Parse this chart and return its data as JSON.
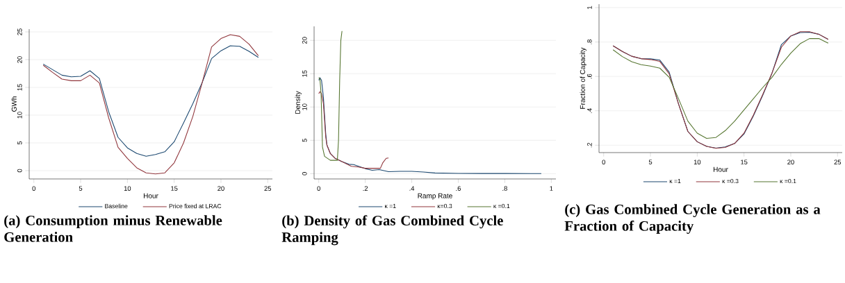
{
  "chart_data": [
    {
      "type": "line",
      "title": "(a) Consumption minus Renewable Generation",
      "xlabel": "Hour",
      "ylabel": "GWh",
      "grid": "y",
      "legend": "bottom",
      "x": [
        1,
        2,
        3,
        4,
        5,
        6,
        7,
        8,
        9,
        10,
        11,
        12,
        13,
        14,
        15,
        16,
        17,
        18,
        19,
        20,
        21,
        22,
        23,
        24
      ],
      "xlim": [
        -0.5,
        25.5
      ],
      "ylim": [
        -1.5,
        25.5
      ],
      "xticks": [
        0,
        5,
        10,
        15,
        20,
        25
      ],
      "yticks": [
        0,
        5,
        10,
        15,
        20,
        25
      ],
      "series": [
        {
          "name": "Baseline",
          "color": "#1a476f",
          "values": [
            19.2,
            18.2,
            17.2,
            16.9,
            17.0,
            18.0,
            16.6,
            10.6,
            6.0,
            4.1,
            3.1,
            2.6,
            2.9,
            3.4,
            5.2,
            8.6,
            12.1,
            15.9,
            20.2,
            21.6,
            22.5,
            22.4,
            21.5,
            20.4
          ]
        },
        {
          "name": "Price fixed at LRAC",
          "color": "#90353b",
          "values": [
            19.0,
            17.7,
            16.5,
            16.2,
            16.2,
            17.2,
            15.8,
            9.5,
            4.2,
            2.2,
            0.5,
            -0.4,
            -0.6,
            -0.4,
            1.4,
            5.0,
            9.8,
            15.9,
            22.3,
            23.8,
            24.5,
            24.2,
            22.8,
            20.7
          ]
        }
      ]
    },
    {
      "type": "line",
      "title": "(b) Density of Gas Combined Cycle Ramping",
      "xlabel": "Ramp Rate",
      "ylabel": "Density",
      "grid": "y",
      "legend": "bottom",
      "xlim": [
        -0.02,
        1.02
      ],
      "ylim": [
        -0.8,
        22.1
      ],
      "xticks": [
        0,
        {
          "value": 0.2,
          "label": ".2"
        },
        {
          "value": 0.4,
          "label": ".4"
        },
        {
          "value": 0.6,
          "label": ".6"
        },
        {
          "value": 0.8,
          "label": ".8"
        },
        1
      ],
      "yticks": [
        0,
        5,
        10,
        15,
        20
      ],
      "series": [
        {
          "name": "κ =1",
          "color": "#1a476f",
          "x": [
            0.0,
            0.005,
            0.012,
            0.02,
            0.03,
            0.035,
            0.05,
            0.07,
            0.1,
            0.13,
            0.15,
            0.18,
            0.2,
            0.23,
            0.26,
            0.3,
            0.35,
            0.4,
            0.45,
            0.5,
            0.6,
            0.7,
            0.8,
            0.957
          ],
          "values": [
            14.0,
            14.4,
            14.0,
            11.5,
            6.0,
            4.3,
            3.0,
            2.3,
            1.8,
            1.4,
            1.35,
            1.0,
            0.75,
            0.5,
            0.6,
            0.3,
            0.35,
            0.35,
            0.25,
            0.1,
            0.03,
            0.02,
            0.02,
            0.0
          ]
        },
        {
          "name": "κ=0.3",
          "color": "#90353b",
          "x": [
            0.0,
            0.005,
            0.012,
            0.02,
            0.03,
            0.035,
            0.05,
            0.07,
            0.1,
            0.14,
            0.17,
            0.2,
            0.24,
            0.265,
            0.275,
            0.29,
            0.3
          ],
          "values": [
            12.0,
            12.3,
            12.0,
            10.5,
            5.5,
            4.3,
            3.0,
            2.3,
            1.8,
            1.1,
            1.0,
            0.8,
            0.8,
            0.8,
            1.6,
            2.3,
            2.35
          ]
        },
        {
          "name": "κ =0.1",
          "color": "#55752f",
          "x": [
            0.0,
            0.005,
            0.01,
            0.013,
            0.016,
            0.025,
            0.05,
            0.08,
            0.085,
            0.09,
            0.095,
            0.1
          ],
          "values": [
            14.4,
            14.2,
            12.0,
            8.0,
            4.0,
            2.6,
            2.0,
            2.0,
            5.0,
            14.0,
            20.0,
            21.4
          ]
        }
      ]
    },
    {
      "type": "line",
      "title": "(c) Gas Combined Cycle Generation as a Fraction of Capacity",
      "xlabel": "Hour",
      "ylabel": "Fraction of Capacity",
      "grid": "y",
      "legend": "bottom",
      "x": [
        1,
        2,
        3,
        4,
        5,
        6,
        7,
        8,
        9,
        10,
        11,
        12,
        13,
        14,
        15,
        16,
        17,
        18,
        19,
        20,
        21,
        22,
        23,
        24
      ],
      "xlim": [
        -0.5,
        25.5
      ],
      "ylim": [
        0.157,
        1.02
      ],
      "xticks": [
        0,
        5,
        10,
        15,
        20,
        25
      ],
      "yticks": [
        {
          "value": 0.2,
          "label": ".2"
        },
        {
          "value": 0.4,
          "label": ".4"
        },
        {
          "value": 0.6,
          "label": ".6"
        },
        {
          "value": 0.8,
          "label": ".8"
        },
        1
      ],
      "series": [
        {
          "name": "κ =1",
          "color": "#1a476f",
          "values": [
            0.778,
            0.745,
            0.717,
            0.703,
            0.702,
            0.695,
            0.625,
            0.44,
            0.28,
            0.22,
            0.193,
            0.183,
            0.19,
            0.21,
            0.265,
            0.37,
            0.49,
            0.62,
            0.785,
            0.835,
            0.855,
            0.857,
            0.845,
            0.815
          ]
        },
        {
          "name": "κ =0.3",
          "color": "#90353b",
          "values": [
            0.778,
            0.745,
            0.717,
            0.703,
            0.698,
            0.687,
            0.615,
            0.44,
            0.28,
            0.22,
            0.193,
            0.182,
            0.187,
            0.21,
            0.27,
            0.375,
            0.495,
            0.62,
            0.77,
            0.835,
            0.86,
            0.86,
            0.845,
            0.815
          ]
        },
        {
          "name": "κ =0.1",
          "color": "#55752f",
          "values": [
            0.755,
            0.715,
            0.685,
            0.668,
            0.66,
            0.648,
            0.595,
            0.47,
            0.34,
            0.27,
            0.24,
            0.245,
            0.285,
            0.34,
            0.405,
            0.47,
            0.535,
            0.595,
            0.67,
            0.735,
            0.79,
            0.82,
            0.82,
            0.793
          ]
        }
      ]
    }
  ]
}
